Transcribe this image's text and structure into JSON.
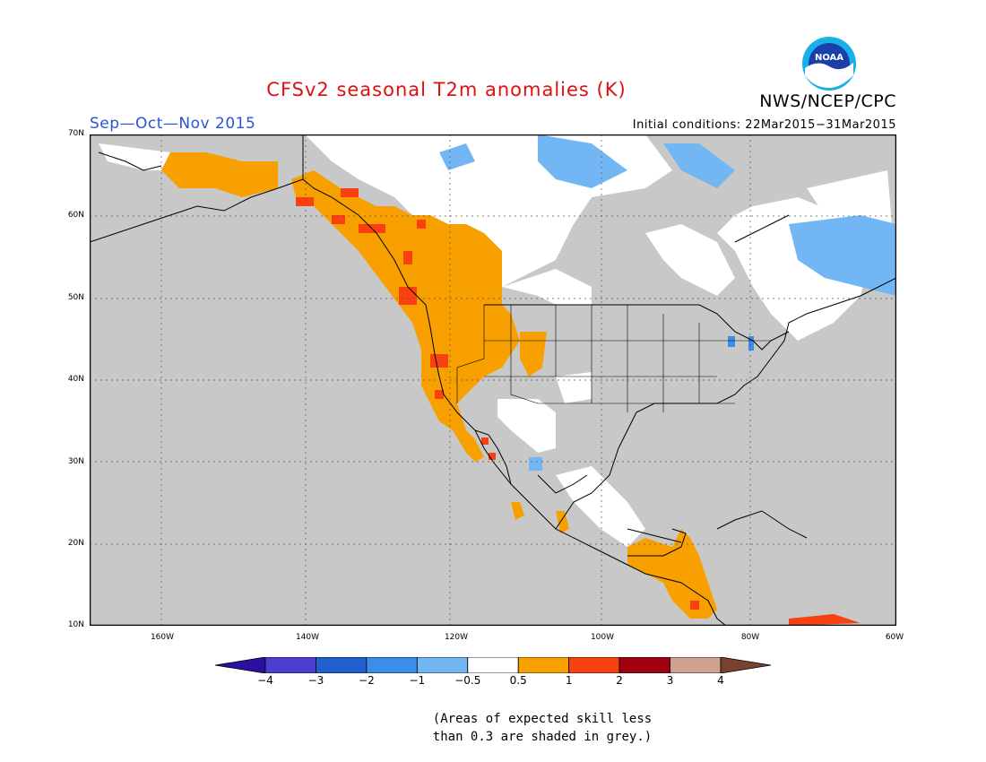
{
  "header": {
    "title": "CFSv2 seasonal T2m anomalies (K)",
    "organization": "NWS/NCEP/CPC",
    "logo_text": "NOAA",
    "season": "Sep—Oct—Nov 2015",
    "initial_conditions": "Initial conditions: 22Mar2015−31Mar2015"
  },
  "map": {
    "lon_range": [
      -172,
      -60
    ],
    "lat_range": [
      10,
      70
    ],
    "lat_labels": [
      "70N",
      "60N",
      "50N",
      "40N",
      "30N",
      "20N",
      "10N"
    ],
    "lon_labels": [
      "160W",
      "140W",
      "120W",
      "100W",
      "80W",
      "60W"
    ],
    "low_skill_color": "#c8c8c8",
    "region_labels": []
  },
  "colorbar": {
    "labels": [
      "−4",
      "−3",
      "−2",
      "−1",
      "−0.5",
      "0.5",
      "1",
      "2",
      "3",
      "4"
    ],
    "colors": [
      "#2b0fa0",
      "#4c3fd0",
      "#1f5fd0",
      "#3a8ee8",
      "#72b6f4",
      "#ffffff",
      "#f8a000",
      "#f84010",
      "#a00010",
      "#d0a090",
      "#7a4030"
    ]
  },
  "note": {
    "line1": "(Areas of expected skill less",
    "line2": "than 0.3 are shaded in grey.)"
  }
}
